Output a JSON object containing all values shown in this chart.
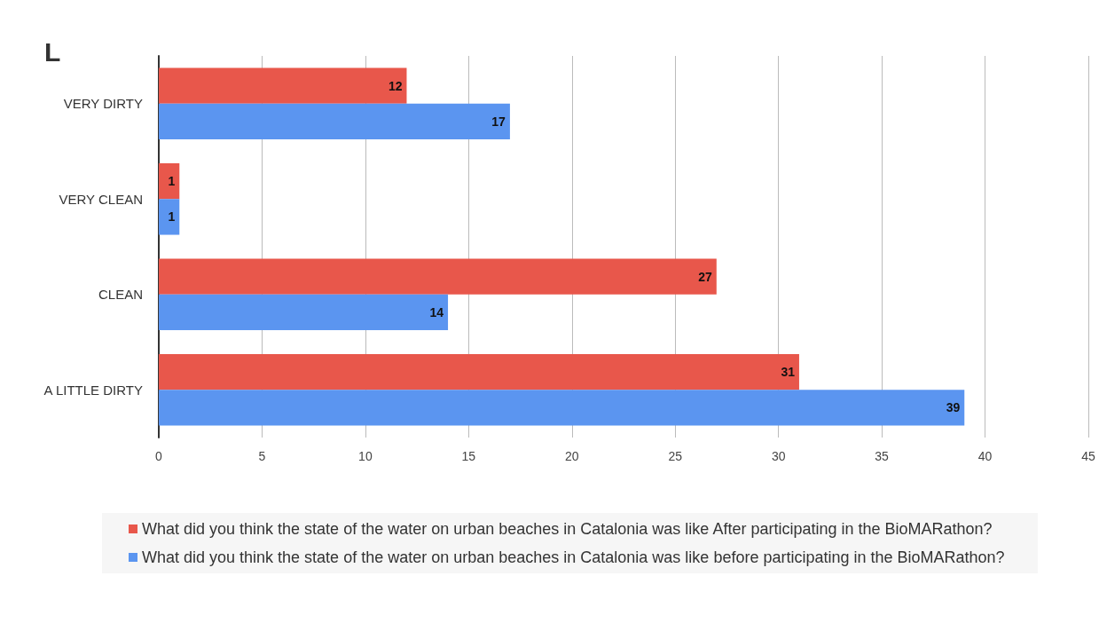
{
  "chart_data": {
    "type": "bar",
    "orientation": "horizontal",
    "title": "L",
    "categories": [
      "VERY DIRTY",
      "VERY CLEAN",
      "CLEAN",
      "A LITTLE DIRTY"
    ],
    "series": [
      {
        "name": "What did you think the state of the water on urban beaches in Catalonia was like After participating in the BioMARathon?",
        "color": "#e8574b",
        "values": [
          12,
          1,
          27,
          31
        ]
      },
      {
        "name": "What did you think the state of the water on urban beaches in Catalonia was like before participating in the BioMARathon?",
        "color": "#5b95f0",
        "values": [
          17,
          1,
          14,
          39
        ]
      }
    ],
    "xlim": [
      0,
      45
    ],
    "xticks": [
      0,
      5,
      10,
      15,
      20,
      25,
      30,
      35,
      40,
      45
    ],
    "grid": "x",
    "legend": "bottom",
    "data_labels": true
  }
}
